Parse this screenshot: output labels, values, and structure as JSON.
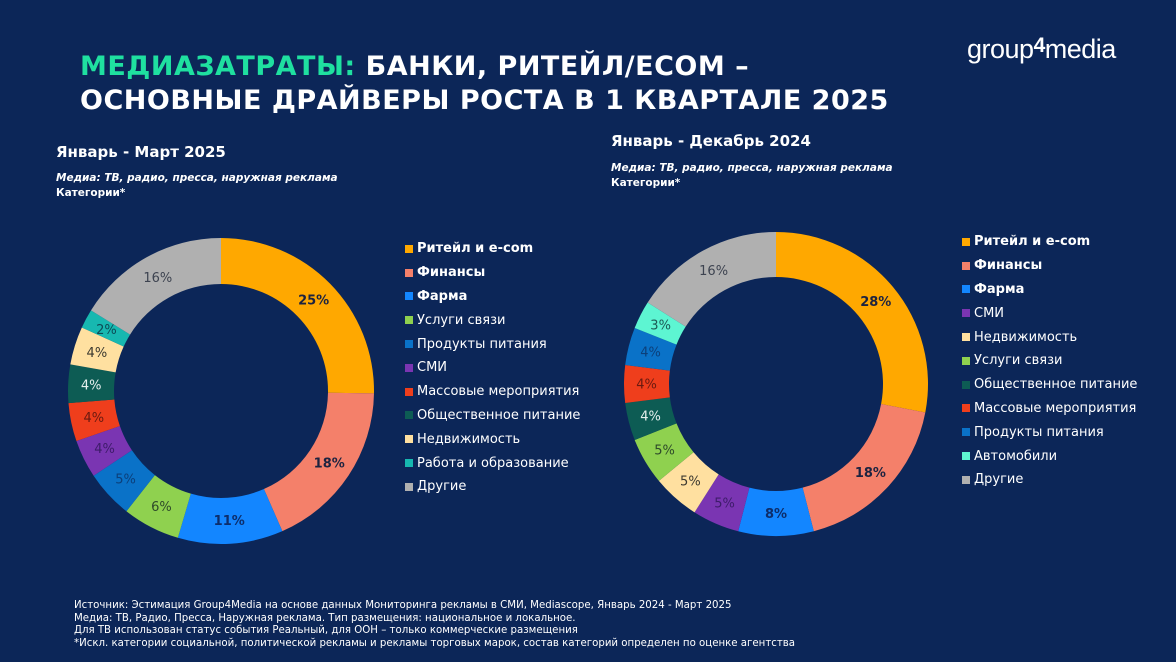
{
  "header": {
    "title_accent": "МЕДИАЗАТРАТЫ:",
    "title_line1_rest": " БАНКИ, РИТЕЙЛ/ECOM –",
    "title_line2": "ОСНОВНЫЕ ДРАЙВЕРЫ РОСТА В 1 КВАРТАЛЕ 2025",
    "logo_part1": "group",
    "logo_part2": "4",
    "logo_part3": "media",
    "accent_color": "#1fe0a0"
  },
  "chart_data": [
    {
      "type": "pie",
      "subtype": "donut",
      "title": "Январь - Март 2025",
      "media_note": "Медиа: ТВ, радио, пресса, наружная реклама",
      "categories_note": "Категории*",
      "legend_position": "right",
      "slices": [
        {
          "label": "Ритейл и e-com",
          "value": 25,
          "text": "25%",
          "color": "#ffa800",
          "bold": true,
          "label_color": "#1d2340"
        },
        {
          "label": "Финансы",
          "value": 18,
          "text": "18%",
          "color": "#f4806a",
          "bold": true,
          "label_color": "#1d2340"
        },
        {
          "label": "Фарма",
          "value": 11,
          "text": "11%",
          "color": "#1386ff",
          "bold": true,
          "label_color": "#0d2d6a"
        },
        {
          "label": "Услуги связи",
          "value": 6,
          "text": "6%",
          "color": "#8fd14f",
          "bold": false,
          "label_color": "#2e4a2a"
        },
        {
          "label": "Продукты питания",
          "value": 5,
          "text": "5%",
          "color": "#0a72c8",
          "bold": false,
          "label_color": "#0c3f7a"
        },
        {
          "label": "СМИ",
          "value": 4,
          "text": "4%",
          "color": "#7a35b2",
          "bold": false,
          "label_color": "#3e1c6a"
        },
        {
          "label": "Массовые мероприятия",
          "value": 4,
          "text": "4%",
          "color": "#ef3e1c",
          "bold": false,
          "label_color": "#6a1a10"
        },
        {
          "label": "Общественное питание",
          "value": 4,
          "text": "4%",
          "color": "#0d5c54",
          "bold": false,
          "label_color": "#e6f0ee"
        },
        {
          "label": "Недвижимость",
          "value": 4,
          "text": "4%",
          "color": "#ffe0a0",
          "bold": false,
          "label_color": "#3d3a30"
        },
        {
          "label": "Работа и образование",
          "value": 2,
          "text": "2%",
          "color": "#17b8b0",
          "bold": false,
          "label_color": "#0d4a55"
        },
        {
          "label": "Другие",
          "value": 16,
          "text": "16%",
          "color": "#b0b0b0",
          "bold": false,
          "label_color": "#3d4350"
        }
      ]
    },
    {
      "type": "pie",
      "subtype": "donut",
      "title": "Январь - Декабрь 2024",
      "media_note": "Медиа: ТВ, радио, пресса, наружная реклама",
      "categories_note": "Категории*",
      "legend_position": "right",
      "slices": [
        {
          "label": "Ритейл и e-com",
          "value": 28,
          "text": "28%",
          "color": "#ffa800",
          "bold": true,
          "label_color": "#1d2340"
        },
        {
          "label": "Финансы",
          "value": 18,
          "text": "18%",
          "color": "#f4806a",
          "bold": true,
          "label_color": "#1d2340"
        },
        {
          "label": "Фарма",
          "value": 8,
          "text": "8%",
          "color": "#1386ff",
          "bold": true,
          "label_color": "#0d2d6a"
        },
        {
          "label": "СМИ",
          "value": 5,
          "text": "5%",
          "color": "#7a35b2",
          "bold": false,
          "label_color": "#3e1c6a"
        },
        {
          "label": "Недвижимость",
          "value": 5,
          "text": "5%",
          "color": "#ffe0a0",
          "bold": false,
          "label_color": "#3d3a30"
        },
        {
          "label": "Услуги связи",
          "value": 5,
          "text": "5%",
          "color": "#8fd14f",
          "bold": false,
          "label_color": "#2e4a2a"
        },
        {
          "label": "Общественное питание",
          "value": 4,
          "text": "4%",
          "color": "#0d5c54",
          "bold": false,
          "label_color": "#e6f0ee"
        },
        {
          "label": "Массовые мероприятия",
          "value": 4,
          "text": "4%",
          "color": "#ef3e1c",
          "bold": false,
          "label_color": "#6a1a10"
        },
        {
          "label": "Продукты питания",
          "value": 4,
          "text": "4%",
          "color": "#0a72c8",
          "bold": false,
          "label_color": "#0c3f7a"
        },
        {
          "label": "Автомобили",
          "value": 3,
          "text": "3%",
          "color": "#5df5d2",
          "bold": false,
          "label_color": "#1d5a55"
        },
        {
          "label": "Другие",
          "value": 16,
          "text": "16%",
          "color": "#b0b0b0",
          "bold": false,
          "label_color": "#3d4350"
        }
      ]
    }
  ],
  "footer": {
    "lines": [
      "Источник: Эстимация Group4Media на основе данных Мониторинга рекламы в СМИ, Mediascope, Январь 2024 - Март 2025",
      "Медиа: ТВ, Радио, Пресса, Наружная реклама. Тип размещения: национальное и локальное.",
      "Для ТВ использован статус события Реальный, для ООН – только коммерческие размещения",
      "*Искл. категории социальной, политической рекламы и рекламы торговых марок, состав категорий определен по оценке агентства"
    ]
  }
}
